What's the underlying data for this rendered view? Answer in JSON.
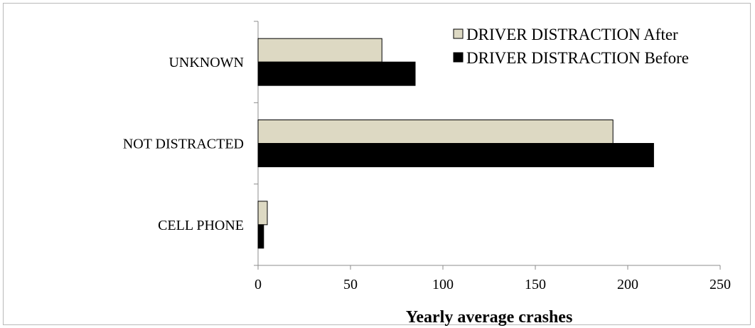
{
  "chart_data": {
    "type": "bar",
    "orientation": "horizontal",
    "categories": [
      "CELL PHONE",
      "NOT DISTRACTED",
      "UNKNOWN"
    ],
    "series": [
      {
        "name": "DRIVER DISTRACTION After",
        "values": [
          5,
          192,
          67
        ],
        "color": "#ddd9c3"
      },
      {
        "name": "DRIVER DISTRACTION Before",
        "values": [
          3,
          214,
          85
        ],
        "color": "#000000"
      }
    ],
    "title": "",
    "xlabel": "Yearly average crashes",
    "ylabel": "",
    "xlim": [
      0,
      250
    ],
    "xticks": [
      "0",
      "50",
      "100",
      "150",
      "200",
      "250"
    ],
    "grid": false,
    "legend_position": "top-right",
    "legend_order": [
      "DRIVER DISTRACTION After",
      "DRIVER DISTRACTION Before"
    ]
  }
}
